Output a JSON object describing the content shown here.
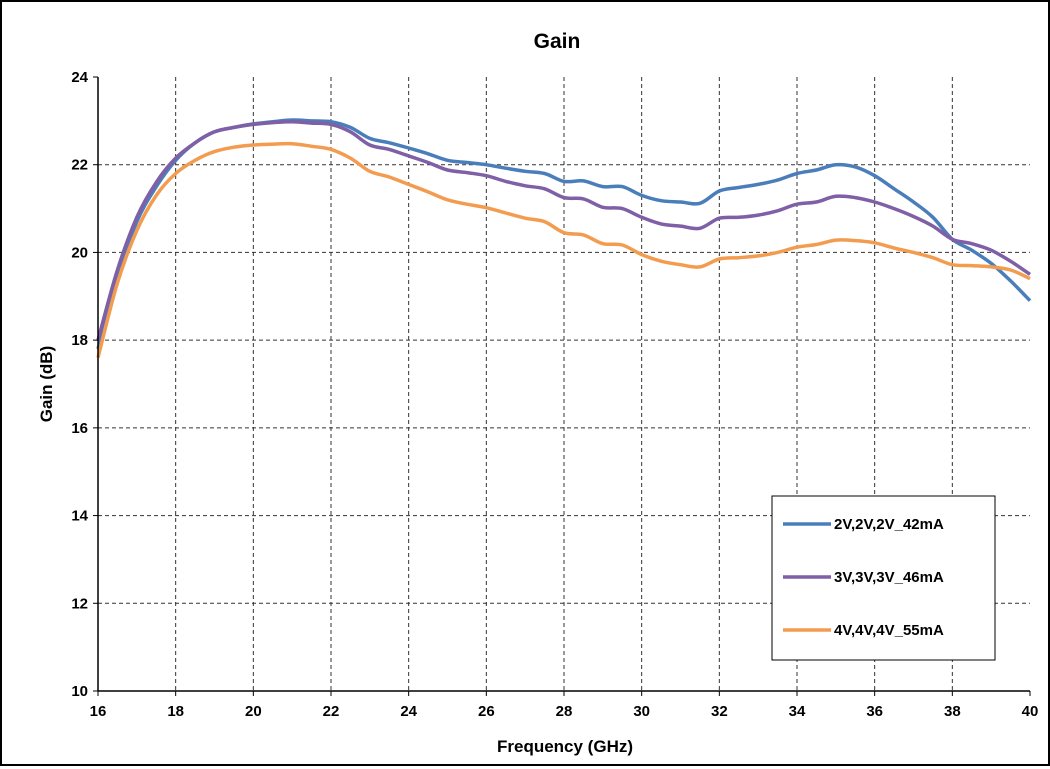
{
  "chart_data": {
    "type": "line",
    "title": "Gain",
    "xlabel": "Frequency (GHz)",
    "ylabel": "Gain (dB)",
    "xlim": [
      16,
      40
    ],
    "ylim": [
      10,
      24
    ],
    "xticks": [
      16,
      18,
      20,
      22,
      24,
      26,
      28,
      30,
      32,
      34,
      36,
      38,
      40
    ],
    "yticks": [
      10,
      12,
      14,
      16,
      18,
      20,
      22,
      24
    ],
    "grid": true,
    "legend_position": "bottom-right",
    "series": [
      {
        "name": "2V,2V,2V_42mA",
        "color": "#4a7ebb",
        "x": [
          16,
          16.5,
          17,
          17.5,
          18,
          18.5,
          19,
          19.5,
          20,
          20.5,
          21,
          21.5,
          22,
          22.5,
          23,
          23.5,
          24,
          24.5,
          25,
          25.5,
          26,
          26.5,
          27,
          27.5,
          28,
          28.5,
          29,
          29.5,
          30,
          30.5,
          31,
          31.5,
          32,
          32.5,
          33,
          33.5,
          34,
          34.5,
          35,
          35.5,
          36,
          36.5,
          37,
          37.5,
          38,
          38.5,
          39,
          39.5,
          40
        ],
        "values": [
          17.8,
          19.4,
          20.7,
          21.5,
          22.1,
          22.5,
          22.75,
          22.85,
          22.93,
          22.98,
          23.02,
          23.0,
          22.98,
          22.85,
          22.6,
          22.5,
          22.38,
          22.25,
          22.1,
          22.05,
          22.0,
          21.92,
          21.85,
          21.8,
          21.62,
          21.63,
          21.5,
          21.5,
          21.3,
          21.18,
          21.15,
          21.12,
          21.4,
          21.48,
          21.55,
          21.65,
          21.8,
          21.88,
          22.0,
          21.95,
          21.75,
          21.45,
          21.15,
          20.8,
          20.3,
          20.05,
          19.75,
          19.35,
          18.9
        ]
      },
      {
        "name": "3V,3V,3V_46mA",
        "color": "#7f5fa6",
        "x": [
          16,
          16.5,
          17,
          17.5,
          18,
          18.5,
          19,
          19.5,
          20,
          20.5,
          21,
          21.5,
          22,
          22.5,
          23,
          23.5,
          24,
          24.5,
          25,
          25.5,
          26,
          26.5,
          27,
          27.5,
          28,
          28.5,
          29,
          29.5,
          30,
          30.5,
          31,
          31.5,
          32,
          32.5,
          33,
          33.5,
          34,
          34.5,
          35,
          35.5,
          36,
          36.5,
          37,
          37.5,
          38,
          38.5,
          39,
          39.5,
          40
        ],
        "values": [
          18.0,
          19.6,
          20.8,
          21.6,
          22.15,
          22.5,
          22.75,
          22.85,
          22.92,
          22.96,
          22.98,
          22.95,
          22.92,
          22.75,
          22.45,
          22.35,
          22.2,
          22.05,
          21.88,
          21.82,
          21.75,
          21.62,
          21.52,
          21.45,
          21.25,
          21.22,
          21.03,
          21.0,
          20.8,
          20.65,
          20.6,
          20.55,
          20.78,
          20.8,
          20.85,
          20.95,
          21.1,
          21.15,
          21.28,
          21.25,
          21.15,
          21.0,
          20.82,
          20.6,
          20.3,
          20.2,
          20.05,
          19.8,
          19.5
        ]
      },
      {
        "name": "4V,4V,4V_55mA",
        "color": "#f39c4f",
        "x": [
          16,
          16.5,
          17,
          17.5,
          18,
          18.5,
          19,
          19.5,
          20,
          20.5,
          21,
          21.5,
          22,
          22.5,
          23,
          23.5,
          24,
          24.5,
          25,
          25.5,
          26,
          26.5,
          27,
          27.5,
          28,
          28.5,
          29,
          29.5,
          30,
          30.5,
          31,
          31.5,
          32,
          32.5,
          33,
          33.5,
          34,
          34.5,
          35,
          35.5,
          36,
          36.5,
          37,
          37.5,
          38,
          38.5,
          39,
          39.5,
          40
        ],
        "values": [
          17.6,
          19.3,
          20.5,
          21.3,
          21.8,
          22.1,
          22.3,
          22.4,
          22.45,
          22.47,
          22.48,
          22.42,
          22.35,
          22.15,
          21.85,
          21.72,
          21.55,
          21.38,
          21.2,
          21.1,
          21.02,
          20.9,
          20.78,
          20.7,
          20.45,
          20.4,
          20.2,
          20.17,
          19.95,
          19.8,
          19.72,
          19.67,
          19.85,
          19.88,
          19.92,
          20.0,
          20.12,
          20.18,
          20.28,
          20.27,
          20.22,
          20.1,
          20.0,
          19.88,
          19.72,
          19.7,
          19.67,
          19.6,
          19.4
        ]
      }
    ]
  }
}
